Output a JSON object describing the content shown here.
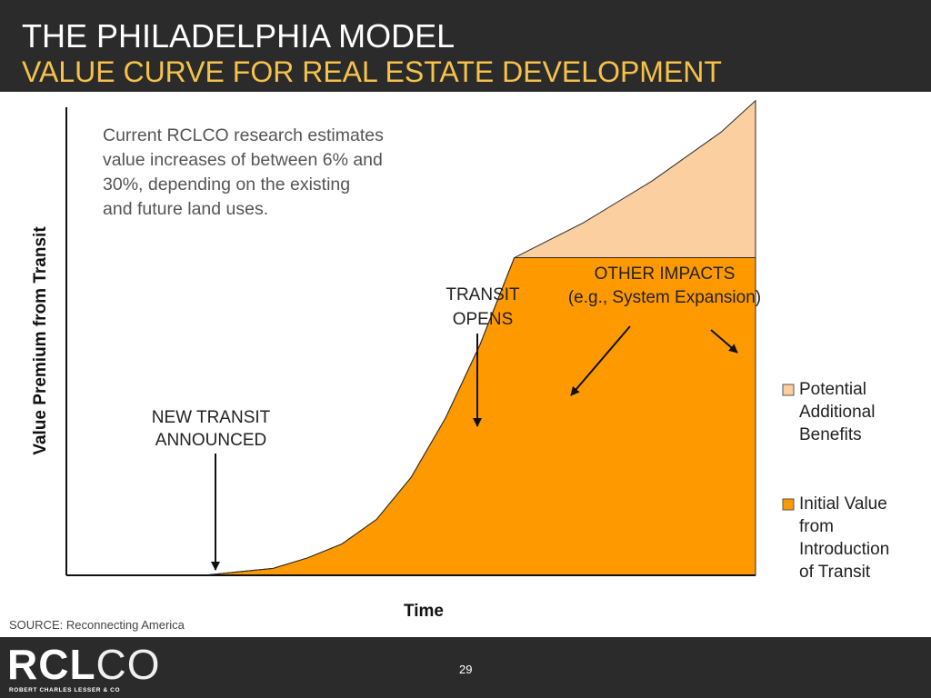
{
  "header": {
    "title": "THE PHILADELPHIA MODEL",
    "subtitle": "VALUE CURVE FOR REAL ESTATE DEVELOPMENT"
  },
  "note": "Current RCLCO research estimates value increases of between 6% and 30%, depending on the existing and future land uses.",
  "source": "SOURCE: Reconnecting America",
  "footer": {
    "logo_rcl": "RCL",
    "logo_co": "CO",
    "logo_tagline": "ROBERT CHARLES LESSER & CO",
    "page_number": "29"
  },
  "chart_data": {
    "type": "area",
    "xlabel": "Time",
    "ylabel": "Value Premium from Transit",
    "x": [
      0,
      0.1,
      0.2,
      0.25,
      0.3,
      0.35,
      0.4,
      0.45,
      0.5,
      0.55,
      0.6,
      0.65,
      0.7,
      0.75,
      0.8,
      0.85,
      0.9,
      0.95,
      1.0
    ],
    "series": [
      {
        "name": "Initial Value from Introduction of Transit",
        "color": "#ff9900",
        "values": [
          0,
          0,
          0,
          0.01,
          0.02,
          0.05,
          0.09,
          0.16,
          0.28,
          0.45,
          0.66,
          0.91,
          0.91,
          0.91,
          0.91,
          0.91,
          0.91,
          0.91,
          0.91
        ]
      },
      {
        "name": "Potential Additional Benefits",
        "color": "#fbcf9f",
        "values": [
          0,
          0,
          0,
          0,
          0,
          0,
          0,
          0,
          0,
          0,
          0,
          0,
          0.05,
          0.1,
          0.16,
          0.22,
          0.29,
          0.36,
          0.45
        ]
      }
    ],
    "annotations": [
      {
        "id": "announced",
        "line1": "NEW TRANSIT",
        "line2": "ANNOUNCED"
      },
      {
        "id": "opens",
        "line1": "TRANSIT",
        "line2": "OPENS"
      },
      {
        "id": "other",
        "line1": "OTHER IMPACTS",
        "line2": "(e.g., System Expansion)"
      }
    ],
    "legend": [
      {
        "line1": "Potential",
        "line2": "Additional",
        "line3": "Benefits",
        "color": "#fbcf9f"
      },
      {
        "line1": "Initial Value",
        "line2": "from",
        "line3": "Introduction",
        "line4": "of Transit",
        "color": "#ff9900"
      }
    ],
    "legend_position": "right",
    "grid": false
  }
}
